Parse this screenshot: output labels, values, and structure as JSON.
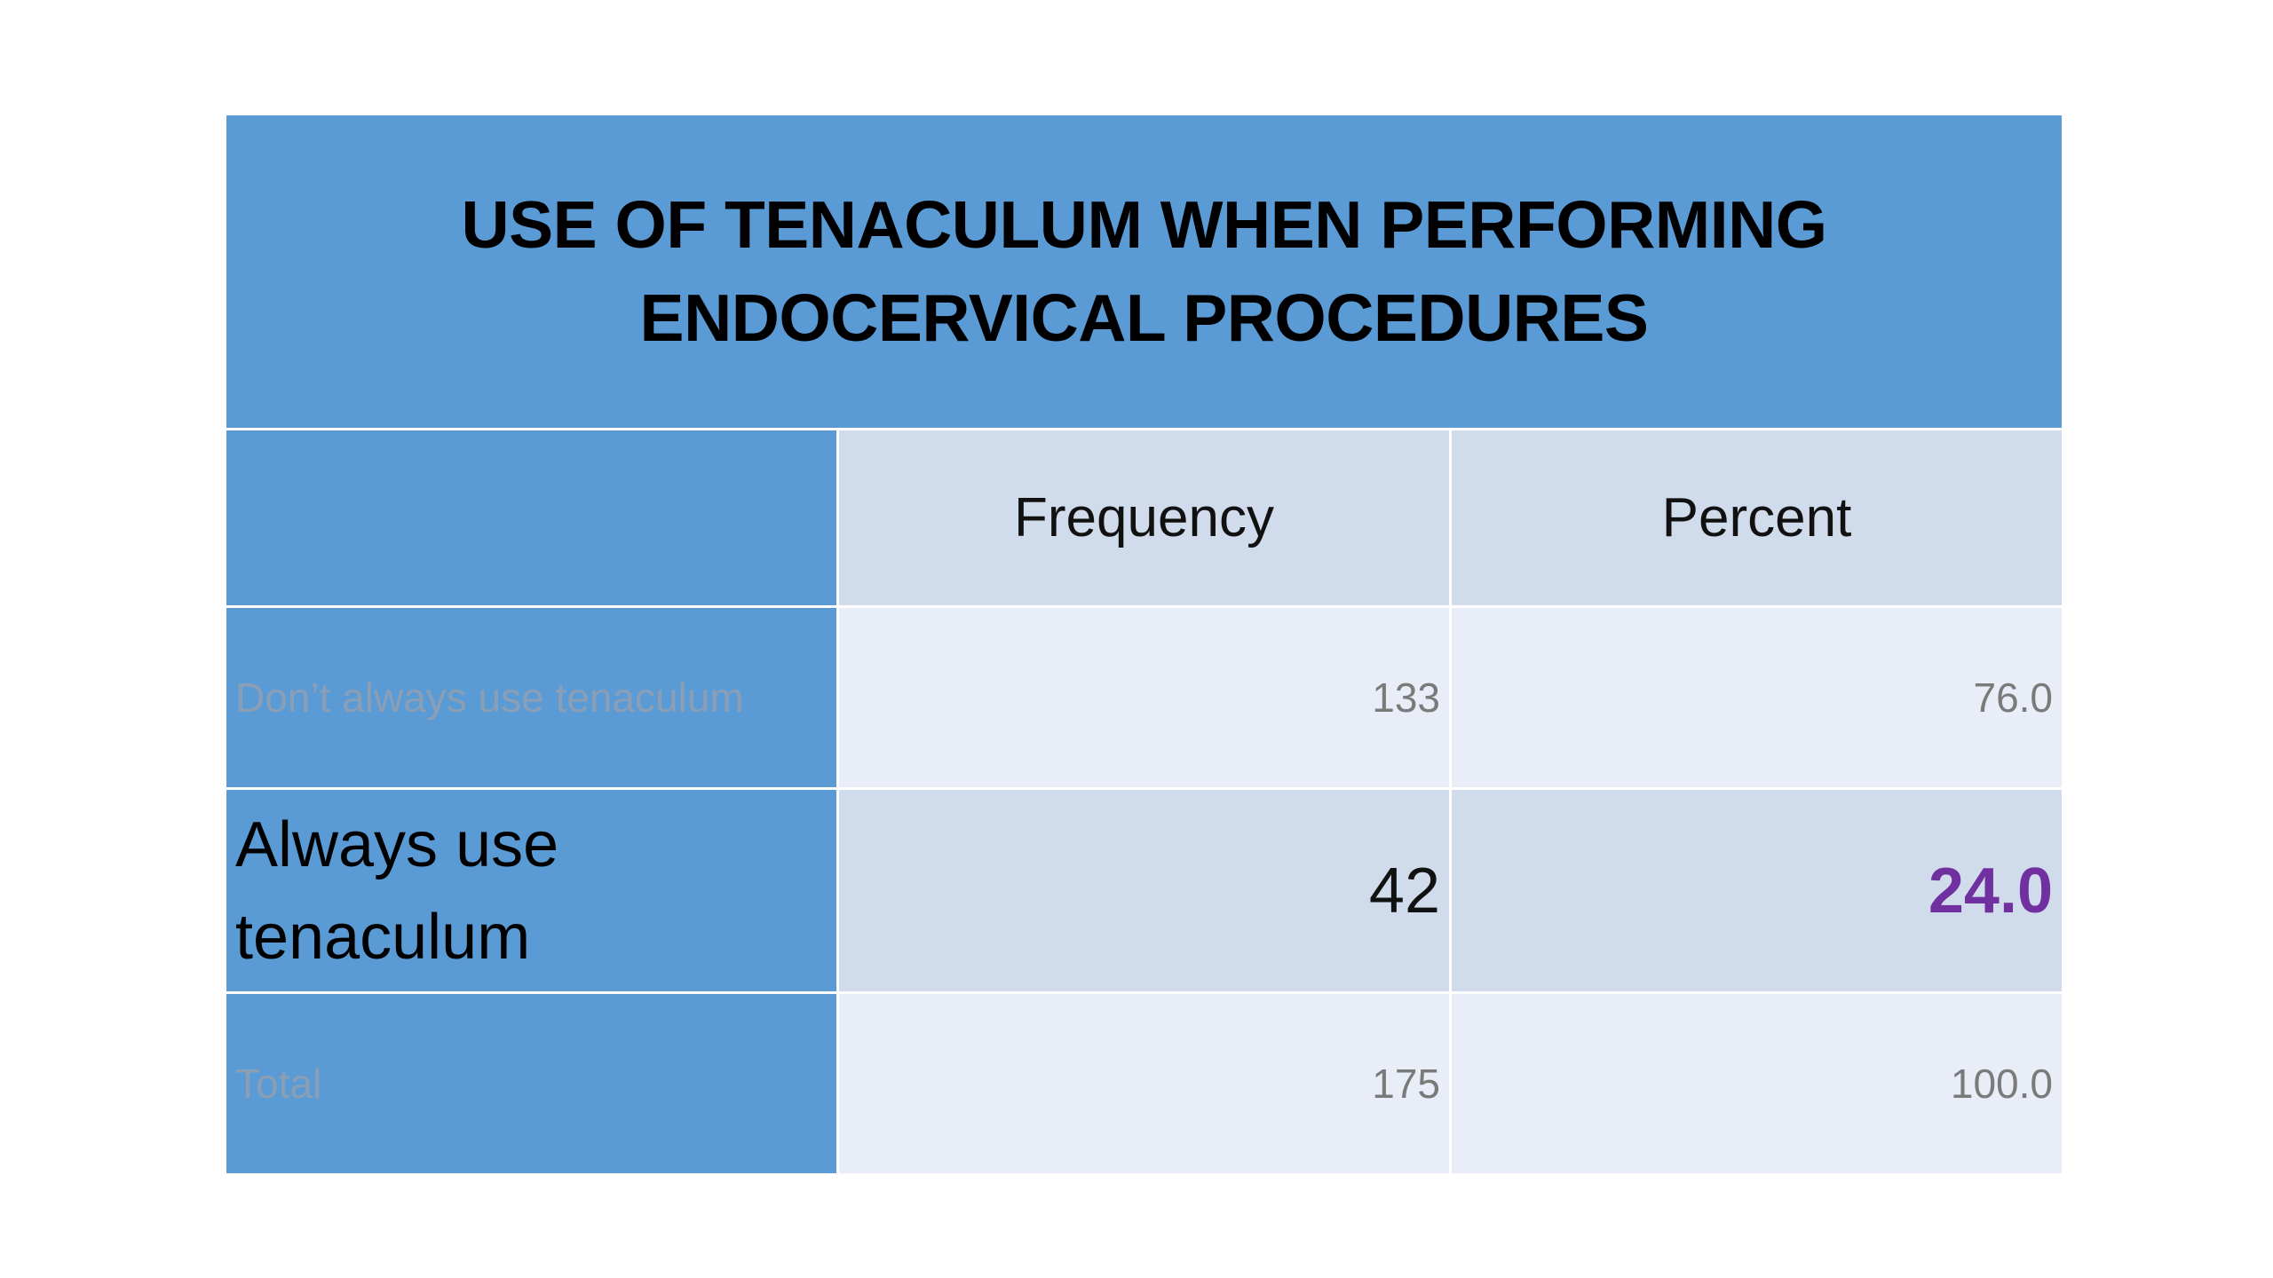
{
  "table": {
    "title": "USE OF TENACULUM WHEN PERFORMING ENDOCERVICAL PROCEDURES",
    "columns": [
      "",
      "Frequency",
      "Percent"
    ],
    "rows": [
      {
        "label": "Don’t always use tenaculum",
        "frequency": "133",
        "percent": "76.0"
      },
      {
        "label": "Always use tenaculum",
        "frequency": "42",
        "percent": "24.0"
      },
      {
        "label": "Total",
        "frequency": "175",
        "percent": "100.0"
      }
    ],
    "colors": {
      "header_blue": "#5b9bd5",
      "cell_light": "#e8edf7",
      "cell_medium": "#d0dcec",
      "highlight_purple": "#7030a0"
    }
  }
}
